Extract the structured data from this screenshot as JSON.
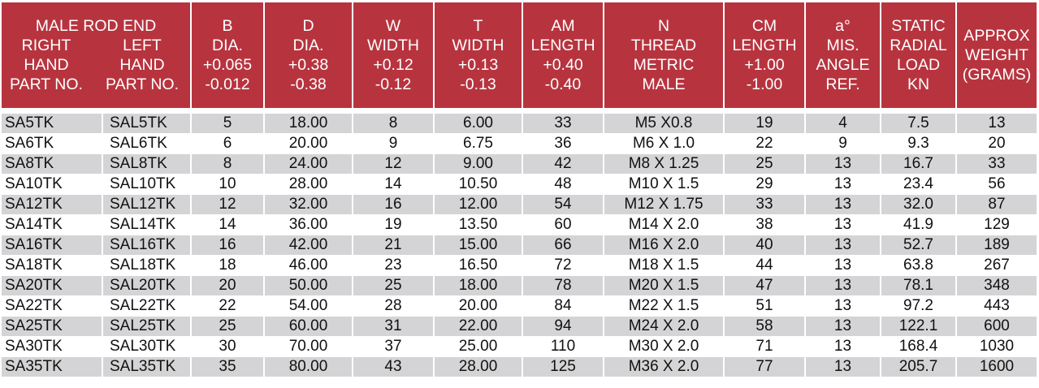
{
  "colors": {
    "header_bg": "#b7343f",
    "header_text": "#ffffff",
    "row_shade": "#d4d4d6"
  },
  "header": {
    "rod_end": {
      "title": "MALE ROD END",
      "right": [
        "RIGHT",
        "HAND",
        "PART NO."
      ],
      "left": [
        "LEFT",
        "HAND",
        "PART NO."
      ]
    },
    "columns": [
      [
        "B",
        "DIA.",
        "+0.065",
        "-0.012"
      ],
      [
        "D",
        "DIA.",
        "+0.38",
        "-0.38"
      ],
      [
        "W",
        "WIDTH",
        "+0.12",
        "-0.12"
      ],
      [
        "T",
        "WIDTH",
        "+0.13",
        "-0.13"
      ],
      [
        "AM",
        "LENGTH",
        "+0.40",
        "-0.40"
      ],
      [
        "N",
        "THREAD",
        "METRIC",
        "MALE"
      ],
      [
        "CM",
        "LENGTH",
        "+1.00",
        "-1.00"
      ],
      [
        "a°",
        "MIS.",
        "ANGLE",
        "REF."
      ],
      [
        "STATIC",
        "RADIAL",
        "LOAD",
        "KN"
      ],
      [
        "APPROX",
        "WEIGHT",
        "(GRAMS)"
      ]
    ]
  },
  "rows": [
    [
      "SA5TK",
      "SAL5TK",
      "5",
      "18.00",
      "8",
      "6.00",
      "33",
      "M5 X0.8",
      "19",
      "4",
      "7.5",
      "13"
    ],
    [
      "SA6TK",
      "SAL6TK",
      "6",
      "20.00",
      "9",
      "6.75",
      "36",
      "M6 X 1.0",
      "22",
      "9",
      "9.3",
      "20"
    ],
    [
      "SA8TK",
      "SAL8TK",
      "8",
      "24.00",
      "12",
      "9.00",
      "42",
      "M8 X 1.25",
      "25",
      "13",
      "16.7",
      "33"
    ],
    [
      "SA10TK",
      "SAL10TK",
      "10",
      "28.00",
      "14",
      "10.50",
      "48",
      "M10 X 1.5",
      "29",
      "13",
      "23.4",
      "56"
    ],
    [
      "SA12TK",
      "SAL12TK",
      "12",
      "32.00",
      "16",
      "12.00",
      "54",
      "M12 X 1.75",
      "33",
      "13",
      "32.0",
      "87"
    ],
    [
      "SA14TK",
      "SAL14TK",
      "14",
      "36.00",
      "19",
      "13.50",
      "60",
      "M14 X 2.0",
      "38",
      "13",
      "41.9",
      "129"
    ],
    [
      "SA16TK",
      "SAL16TK",
      "16",
      "42.00",
      "21",
      "15.00",
      "66",
      "M16 X 2.0",
      "40",
      "13",
      "52.7",
      "189"
    ],
    [
      "SA18TK",
      "SAL18TK",
      "18",
      "46.00",
      "23",
      "16.50",
      "72",
      "M18 X 1.5",
      "44",
      "13",
      "63.8",
      "267"
    ],
    [
      "SA20TK",
      "SAL20TK",
      "20",
      "50.00",
      "25",
      "18.00",
      "78",
      "M20 X 1.5",
      "47",
      "13",
      "78.1",
      "348"
    ],
    [
      "SA22TK",
      "SAL22TK",
      "22",
      "54.00",
      "28",
      "20.00",
      "84",
      "M22 X 1.5",
      "51",
      "13",
      "97.2",
      "443"
    ],
    [
      "SA25TK",
      "SAL25TK",
      "25",
      "60.00",
      "31",
      "22.00",
      "94",
      "M24 X 2.0",
      "58",
      "13",
      "122.1",
      "600"
    ],
    [
      "SA30TK",
      "SAL30TK",
      "30",
      "70.00",
      "37",
      "25.00",
      "110",
      "M30 X 2.0",
      "71",
      "13",
      "168.4",
      "1030"
    ],
    [
      "SA35TK",
      "SAL35TK",
      "35",
      "80.00",
      "43",
      "28.00",
      "125",
      "M36 X 2.0",
      "77",
      "13",
      "205.7",
      "1600"
    ]
  ]
}
